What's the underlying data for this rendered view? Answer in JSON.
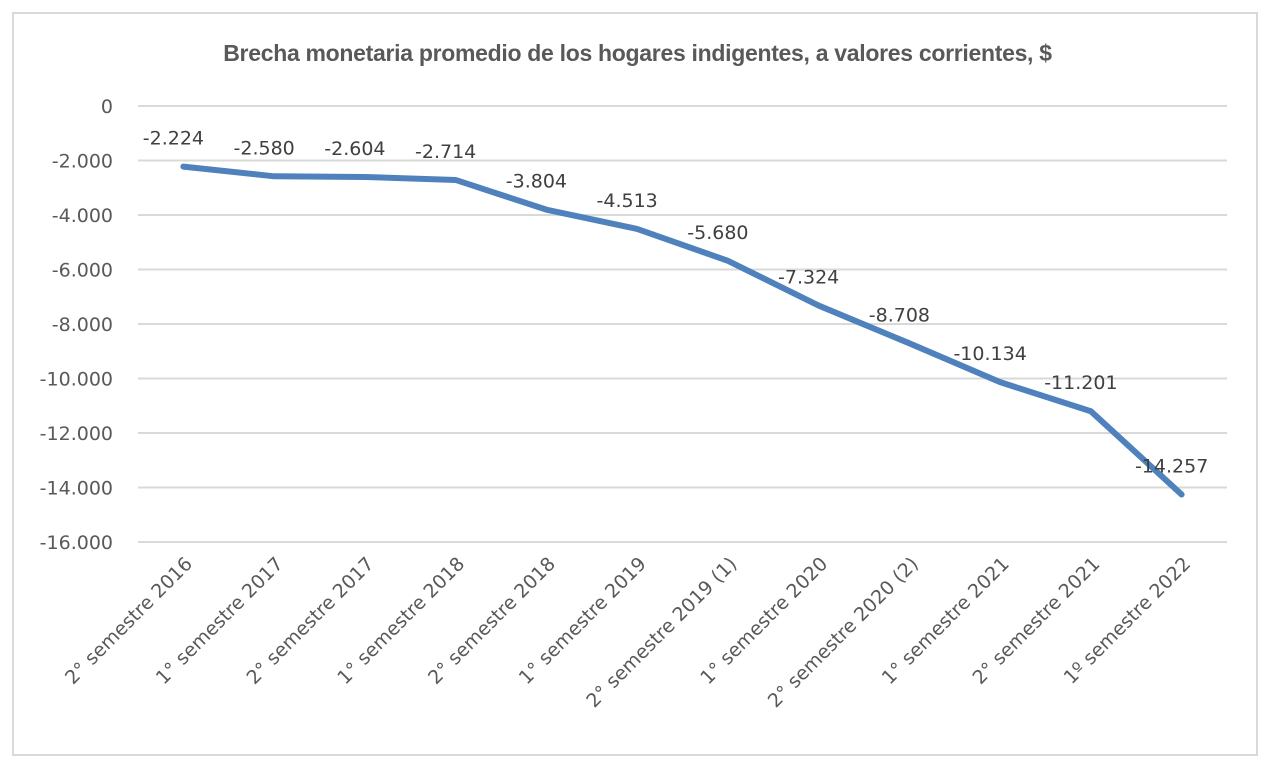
{
  "chart_data": {
    "type": "line",
    "title": "Brecha monetaria promedio de los hogares indigentes, a valores corrientes, $",
    "xlabel": "",
    "ylabel": "",
    "categories": [
      "2° semestre 2016",
      "1° semestre 2017",
      "2° semestre 2017",
      "1° semestre 2018",
      "2° semestre 2018",
      "1° semestre 2019",
      "2° semestre 2019 (1)",
      "1° semestre 2020",
      "2° semestre 2020 (2)",
      "1° semestre 2021",
      "2° semestre 2021",
      "1º semestre 2022"
    ],
    "series": [
      {
        "name": "Brecha monetaria promedio",
        "values": [
          -2224,
          -2580,
          -2604,
          -2714,
          -3804,
          -4513,
          -5680,
          -7324,
          -8708,
          -10134,
          -11201,
          -14257
        ],
        "data_labels": [
          "-2.224",
          "-2.580",
          "-2.604",
          "-2.714",
          "-3.804",
          "-4.513",
          "-5.680",
          "-7.324",
          "-8.708",
          "-10.134",
          "-11.201",
          "-14.257"
        ],
        "color": "#4f81bd"
      }
    ],
    "ylim": [
      -16000,
      0
    ],
    "yticks": [
      0,
      -2000,
      -4000,
      -6000,
      -8000,
      -10000,
      -12000,
      -14000,
      -16000
    ],
    "ytick_labels": [
      "0",
      "-2.000",
      "-4.000",
      "-6.000",
      "-8.000",
      "-10.000",
      "-12.000",
      "-14.000",
      "-16.000"
    ],
    "grid": true,
    "legend": "none"
  },
  "colors": {
    "line": "#4f81bd",
    "grid": "#d9d9d9",
    "text": "#595959"
  }
}
